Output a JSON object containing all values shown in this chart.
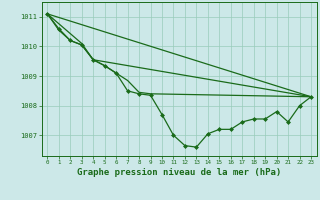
{
  "background_color": "#cce8e8",
  "plot_bg_color": "#cce8e8",
  "grid_color": "#99ccbb",
  "line_color": "#1a6b1a",
  "marker_color": "#1a6b1a",
  "xlabel": "Graphe pression niveau de la mer (hPa)",
  "xlabel_fontsize": 6.5,
  "ylabel_ticks": [
    1007,
    1008,
    1009,
    1010,
    1011
  ],
  "xlim": [
    -0.5,
    23.5
  ],
  "ylim": [
    1006.3,
    1011.5
  ],
  "line1": {
    "x": [
      0,
      23
    ],
    "y": [
      1011.1,
      1008.3
    ]
  },
  "line2": {
    "x": [
      0,
      3,
      4,
      23
    ],
    "y": [
      1011.1,
      1010.1,
      1009.55,
      1008.3
    ]
  },
  "line3": {
    "x": [
      0,
      1,
      2,
      3,
      4,
      5,
      6,
      7,
      8,
      9,
      23
    ],
    "y": [
      1011.1,
      1010.55,
      1010.2,
      1010.05,
      1009.55,
      1009.35,
      1009.1,
      1008.85,
      1008.45,
      1008.4,
      1008.3
    ]
  },
  "main_line": {
    "x": [
      0,
      1,
      2,
      3,
      4,
      5,
      6,
      7,
      8,
      9,
      10,
      11,
      12,
      13,
      14,
      15,
      16,
      17,
      18,
      19,
      20,
      21,
      22,
      23
    ],
    "y": [
      1011.1,
      1010.6,
      1010.2,
      1010.05,
      1009.55,
      1009.35,
      1009.1,
      1008.5,
      1008.4,
      1008.35,
      1007.7,
      1007.0,
      1006.65,
      1006.6,
      1007.05,
      1007.2,
      1007.2,
      1007.45,
      1007.55,
      1007.55,
      1007.8,
      1007.45,
      1008.0,
      1008.3
    ]
  }
}
